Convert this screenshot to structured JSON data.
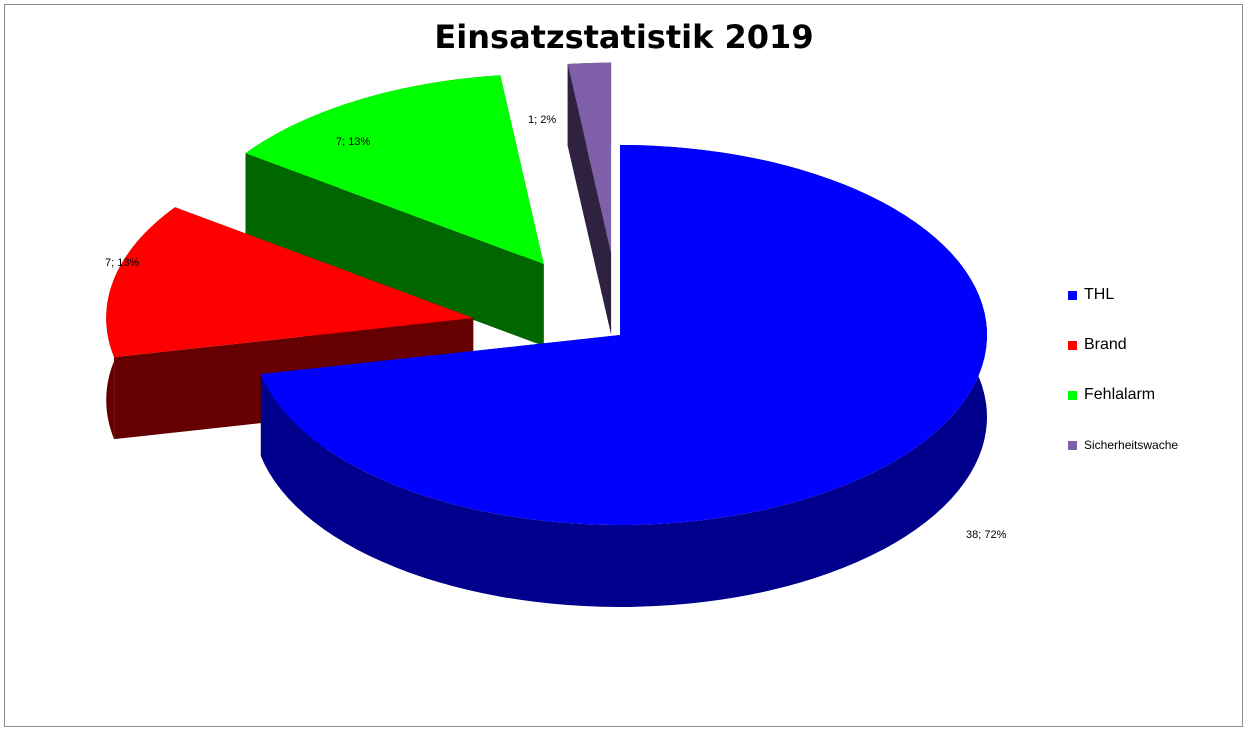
{
  "title": "Einsatzstatistik 2019",
  "chart_data": {
    "type": "pie",
    "title": "Einsatzstatistik 2019",
    "style": "3d-exploded",
    "legend_position": "right",
    "categories": [
      "THL",
      "Brand",
      "Fehlalarm",
      "Sicherheitswache"
    ],
    "values": [
      38,
      7,
      7,
      1
    ],
    "percentages": [
      72,
      13,
      13,
      2
    ],
    "data_labels": [
      "38; 72%",
      "7; 13%",
      "7; 13%",
      "1; 2%"
    ],
    "colors": [
      "#0000ff",
      "#ff0000",
      "#00ff00",
      "#7f5fa8"
    ],
    "side_colors": [
      "#00008c",
      "#660000",
      "#006600",
      "#2e2240"
    ]
  }
}
